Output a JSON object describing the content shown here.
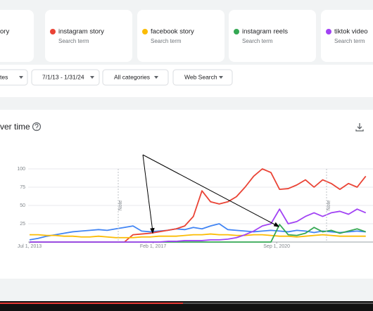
{
  "card_subtitles": [
    "Search term",
    "Search term",
    "Search term",
    "Search term"
  ],
  "filters": [
    "tes",
    "7/1/13 - 1/31/24",
    "All categories",
    "Web Search"
  ],
  "section_title": "ver time",
  "notes": [
    "Note",
    "Note"
  ],
  "chart_data": {
    "type": "line",
    "x": [
      2013.5,
      2013.75,
      2014,
      2014.25,
      2014.5,
      2014.75,
      2015,
      2015.25,
      2015.5,
      2015.75,
      2016,
      2016.25,
      2016.5,
      2016.75,
      2017,
      2017.25,
      2017.5,
      2017.75,
      2018,
      2018.25,
      2018.5,
      2018.75,
      2019,
      2019.25,
      2019.5,
      2019.75,
      2020,
      2020.25,
      2020.5,
      2020.75,
      2021,
      2021.25,
      2021.5,
      2021.75,
      2022,
      2022.25,
      2022.5,
      2022.75,
      2023,
      2023.25
    ],
    "xlim": [
      2013.5,
      2023.46
    ],
    "xticks": [
      {
        "value": 2013.5,
        "label": "Jul 1, 2013"
      },
      {
        "value": 2017.083,
        "label": "Feb 1, 2017"
      },
      {
        "value": 2020.667,
        "label": "Sep 1, 2020"
      }
    ],
    "ylim": [
      0,
      100
    ],
    "yticks": [
      25,
      50,
      75,
      100
    ],
    "grid": true,
    "series": [
      {
        "name": "ory",
        "color": "#4285f4",
        "values": [
          3,
          5,
          8,
          10,
          12,
          14,
          15,
          16,
          17,
          16,
          18,
          20,
          22,
          15,
          14,
          15,
          16,
          18,
          17,
          20,
          18,
          22,
          25,
          17,
          16,
          15,
          14,
          15,
          16,
          15,
          14,
          16,
          15,
          13,
          15,
          14,
          13,
          14,
          15,
          14
        ]
      },
      {
        "name": "instagram story",
        "color": "#ea4335",
        "values": [
          0,
          0,
          0,
          0,
          0,
          0,
          0,
          0,
          0,
          0,
          0,
          0,
          10,
          11,
          12,
          14,
          16,
          18,
          22,
          35,
          70,
          55,
          52,
          55,
          62,
          75,
          90,
          100,
          95,
          72,
          73,
          78,
          85,
          75,
          85,
          80,
          72,
          80,
          75,
          90
        ]
      },
      {
        "name": "facebook story",
        "color": "#fbbc04",
        "values": [
          10,
          10,
          9,
          9,
          8,
          8,
          7,
          7,
          8,
          7,
          6,
          6,
          6,
          7,
          7,
          8,
          8,
          8,
          9,
          10,
          10,
          11,
          10,
          10,
          9,
          9,
          10,
          10,
          9,
          8,
          8,
          7,
          8,
          9,
          10,
          9,
          8,
          8,
          8,
          8
        ]
      },
      {
        "name": "instagram reels",
        "color": "#34a853",
        "values": [
          0,
          0,
          0,
          0,
          0,
          0,
          0,
          0,
          0,
          0,
          0,
          0,
          0,
          0,
          0,
          0,
          0,
          0,
          0,
          0,
          0,
          0,
          0,
          0,
          0,
          0,
          0,
          0,
          0,
          24,
          10,
          9,
          12,
          20,
          14,
          16,
          12,
          15,
          18,
          14
        ]
      },
      {
        "name": "tiktok video",
        "color": "#a142f4",
        "values": [
          0,
          0,
          0,
          0,
          0,
          0,
          0,
          0,
          0,
          0,
          0,
          0,
          0,
          0,
          0,
          0,
          1,
          1,
          2,
          2,
          2,
          3,
          3,
          4,
          6,
          10,
          15,
          22,
          25,
          45,
          25,
          28,
          35,
          40,
          35,
          40,
          42,
          38,
          45,
          40
        ]
      }
    ]
  }
}
